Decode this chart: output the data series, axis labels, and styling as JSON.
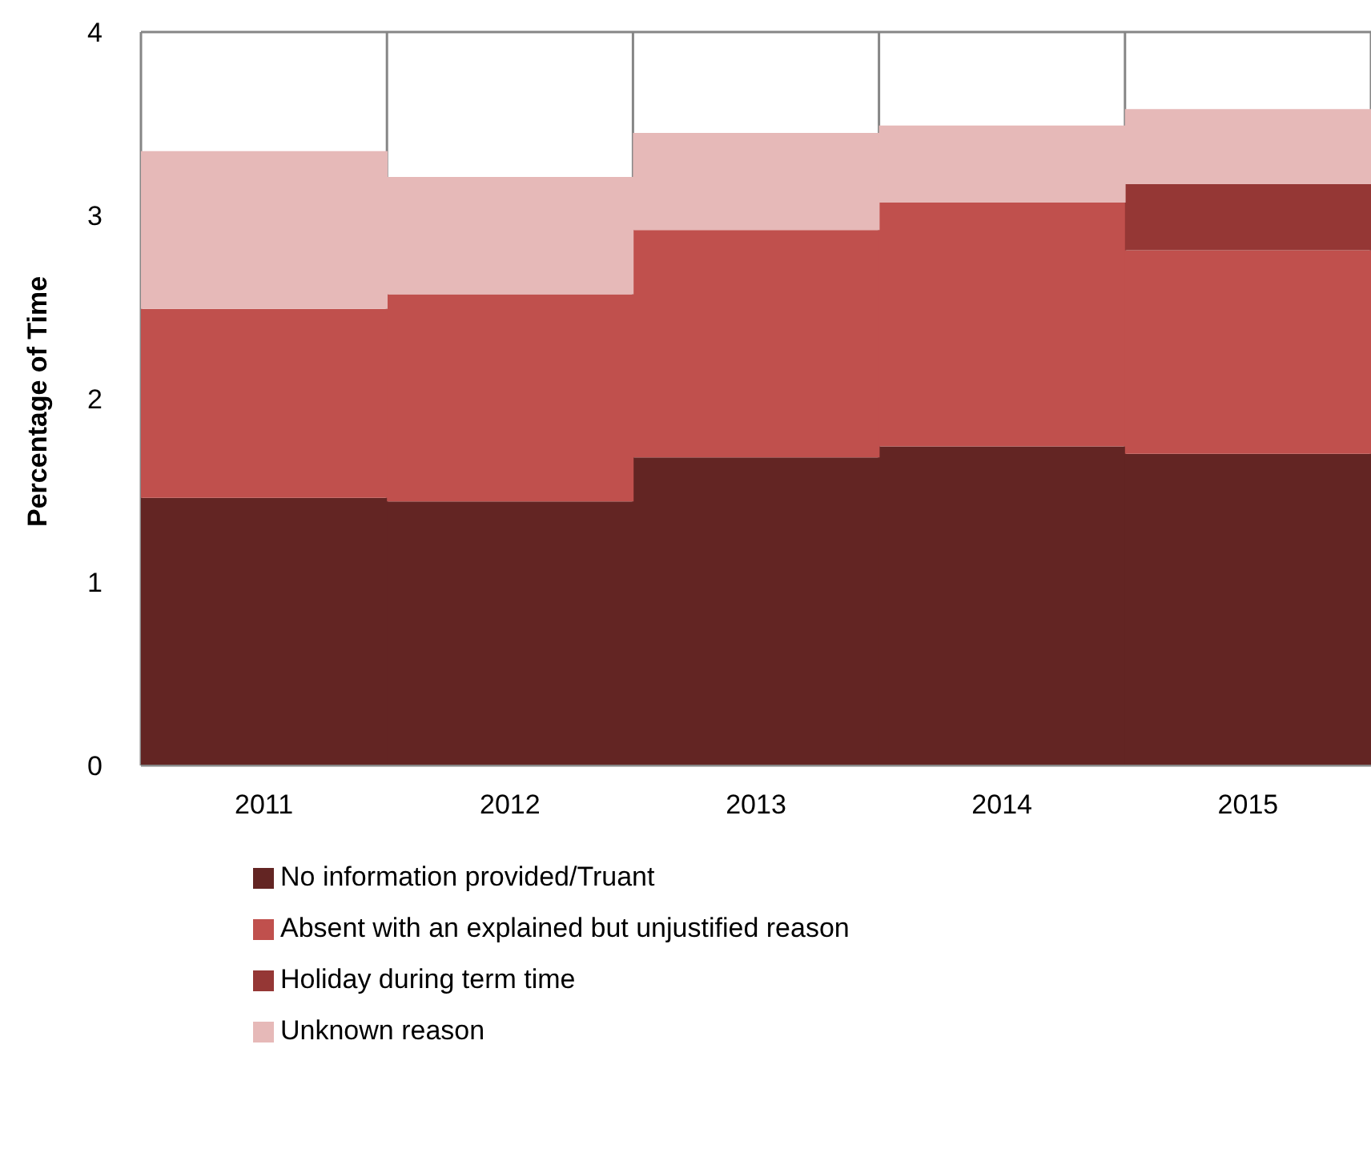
{
  "chart_data": {
    "type": "bar",
    "stacked": true,
    "ylabel": "Percentage of Time",
    "categories": [
      "2011",
      "2012",
      "2013",
      "2014",
      "2015"
    ],
    "series": [
      {
        "name": "No information provided/Truant",
        "color": "#632523",
        "values": [
          1.46,
          1.44,
          1.68,
          1.74,
          1.7
        ]
      },
      {
        "name": "Absent with an explained but unjustified reason",
        "color": "#c0504d",
        "values": [
          1.03,
          1.13,
          1.24,
          1.33,
          1.11
        ]
      },
      {
        "name": "Holiday during term time",
        "color": "#953735",
        "values": [
          0,
          0,
          0,
          0,
          0.36
        ]
      },
      {
        "name": "Unknown reason",
        "color": "#e6b9b8",
        "values": [
          0.86,
          0.64,
          0.53,
          0.42,
          0.41
        ]
      }
    ],
    "ylim": [
      0,
      4
    ],
    "yticks": [
      0,
      1,
      2,
      3,
      4
    ],
    "grid": true,
    "legend": "bottom"
  }
}
